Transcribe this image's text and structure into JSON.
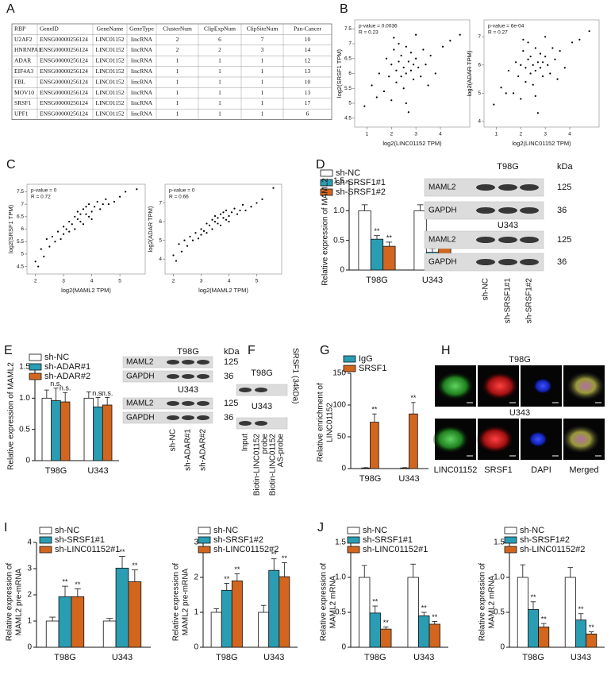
{
  "panel_labels": [
    "A",
    "B",
    "C",
    "D",
    "E",
    "F",
    "G",
    "H",
    "I",
    "J"
  ],
  "table": {
    "header": [
      "RBP",
      "GeneID",
      "GeneName",
      "GeneType",
      "ClusterNum",
      "ClipExpNum",
      "ClipSiteNum",
      "Pan-Cancer"
    ],
    "rows": [
      [
        "U2AF2",
        "ENSG00000256124",
        "LINC01152",
        "lincRNA",
        2,
        6,
        7,
        10
      ],
      [
        "HNRNPA1",
        "ENSG00000256124",
        "LINC01152",
        "lincRNA",
        2,
        2,
        3,
        14
      ],
      [
        "ADAR",
        "ENSG00000256124",
        "LINC01152",
        "lincRNA",
        1,
        1,
        1,
        12
      ],
      [
        "EIF4A3",
        "ENSG00000256124",
        "LINC01152",
        "lincRNA",
        1,
        1,
        1,
        13
      ],
      [
        "FBL",
        "ENSG00000256124",
        "LINC01152",
        "lincRNA",
        1,
        1,
        1,
        10
      ],
      [
        "MOV10",
        "ENSG00000256124",
        "LINC01152",
        "lincRNA",
        1,
        1,
        1,
        13
      ],
      [
        "SRSF1",
        "ENSG00000256124",
        "LINC01152",
        "lincRNA",
        1,
        1,
        1,
        17
      ],
      [
        "UPF1",
        "ENSG00000256124",
        "LINC01152",
        "lincRNA",
        1,
        1,
        1,
        6
      ]
    ]
  },
  "chart_data": [
    {
      "type": "scatter",
      "color": "#000000",
      "annotations": [
        "p-value = 0.0036",
        "R = 0.23"
      ],
      "xlabel": "log2(LINC01152 TPM)",
      "ylabel": "log2(SRSF1 TPM)",
      "xlim": [
        0.5,
        5.2
      ],
      "ylim": [
        4.2,
        7.8
      ],
      "xticks": [
        1,
        2,
        3,
        4
      ],
      "yticks": [
        4.5,
        5,
        5.5,
        6,
        6.5,
        7,
        7.5
      ],
      "x": [
        1.2,
        1.5,
        1.7,
        1.8,
        1.9,
        2.0,
        2.0,
        2.1,
        2.2,
        2.2,
        2.3,
        2.3,
        2.4,
        2.4,
        2.5,
        2.5,
        2.6,
        2.6,
        2.7,
        2.7,
        2.8,
        2.8,
        2.9,
        3.0,
        3.0,
        3.1,
        3.2,
        3.3,
        3.4,
        3.6,
        3.8,
        4.1,
        4.4,
        4.8,
        0.9,
        1.4,
        2.1,
        2.6,
        3.5,
        2.9
      ],
      "values": [
        5.6,
        6.0,
        5.4,
        6.5,
        5.9,
        6.3,
        5.1,
        6.8,
        6.1,
        5.7,
        6.4,
        7.0,
        5.9,
        6.6,
        6.2,
        5.5,
        6.9,
        6.0,
        6.4,
        4.7,
        6.7,
        6.1,
        5.8,
        6.5,
        7.3,
        6.2,
        5.9,
        6.8,
        6.3,
        6.6,
        6.0,
        6.9,
        7.1,
        7.3,
        4.9,
        5.2,
        7.2,
        5.0,
        5.6,
        6.3
      ]
    },
    {
      "type": "scatter",
      "color": "#000000",
      "annotations": [
        "p-value = 6e-04",
        "R = 0.27"
      ],
      "xlabel": "log2(LINC01152 TPM)",
      "ylabel": "log2(ADAR TPM)",
      "xlim": [
        0.5,
        5.2
      ],
      "ylim": [
        3.8,
        7.6
      ],
      "xticks": [
        1,
        2,
        3,
        4
      ],
      "yticks": [
        4,
        5,
        6,
        7
      ],
      "x": [
        1.2,
        1.5,
        1.7,
        1.8,
        1.9,
        2.0,
        2.0,
        2.1,
        2.2,
        2.2,
        2.3,
        2.3,
        2.4,
        2.4,
        2.5,
        2.5,
        2.6,
        2.6,
        2.7,
        2.7,
        2.8,
        2.8,
        2.9,
        3.0,
        3.0,
        3.1,
        3.2,
        3.3,
        3.4,
        3.6,
        3.8,
        4.1,
        4.4,
        4.8,
        0.9,
        1.4,
        2.1,
        2.6,
        3.5,
        2.9
      ],
      "values": [
        5.2,
        5.8,
        5.0,
        6.1,
        5.6,
        6.0,
        4.8,
        6.5,
        5.9,
        5.4,
        6.2,
        6.8,
        5.7,
        6.3,
        6.0,
        5.3,
        6.6,
        5.8,
        6.1,
        4.3,
        6.4,
        5.9,
        5.6,
        6.3,
        7.0,
        6.0,
        5.7,
        6.6,
        6.2,
        6.5,
        5.9,
        6.8,
        6.9,
        7.2,
        4.6,
        5.0,
        6.9,
        4.9,
        5.5,
        6.1
      ]
    },
    {
      "type": "scatter",
      "color": "#000000",
      "annotations": [
        "p-value = 0",
        "R = 0.72"
      ],
      "xlabel": "log2(MAML2 TPM)",
      "ylabel": "log2(SRSF1 TPM)",
      "xlim": [
        1.7,
        5.9
      ],
      "ylim": [
        4.2,
        7.8
      ],
      "xticks": [
        2,
        3,
        4,
        5
      ],
      "yticks": [
        4.5,
        5,
        5.5,
        6,
        6.5,
        7,
        7.5
      ],
      "x": [
        2.0,
        2.1,
        2.2,
        2.3,
        2.4,
        2.5,
        2.6,
        2.7,
        2.8,
        2.9,
        3.0,
        3.0,
        3.1,
        3.2,
        3.2,
        3.3,
        3.4,
        3.4,
        3.5,
        3.5,
        3.6,
        3.6,
        3.7,
        3.7,
        3.8,
        3.8,
        3.9,
        3.9,
        4.0,
        4.0,
        4.1,
        4.2,
        4.3,
        4.4,
        4.5,
        4.6,
        4.8,
        5.0,
        5.2,
        5.6
      ],
      "values": [
        4.7,
        4.5,
        5.2,
        4.9,
        5.6,
        5.3,
        5.7,
        5.5,
        5.9,
        5.6,
        6.1,
        5.8,
        6.0,
        6.3,
        5.9,
        6.2,
        6.5,
        6.0,
        6.4,
        6.7,
        6.3,
        6.6,
        6.8,
        6.2,
        6.6,
        6.9,
        6.5,
        7.0,
        6.7,
        6.4,
        6.9,
        7.1,
        6.8,
        7.0,
        7.2,
        7.0,
        7.1,
        7.3,
        7.5,
        7.6
      ]
    },
    {
      "type": "scatter",
      "color": "#000000",
      "annotations": [
        "p-value = 0",
        "R = 0.66"
      ],
      "xlabel": "log2(MAML2 TPM)",
      "ylabel": "log2(ADAR TPM)",
      "xlim": [
        1.7,
        5.9
      ],
      "ylim": [
        3.2,
        8.0
      ],
      "xticks": [
        2,
        3,
        4,
        5
      ],
      "yticks": [
        4,
        5,
        6,
        7
      ],
      "x": [
        2.0,
        2.1,
        2.2,
        2.3,
        2.4,
        2.5,
        2.6,
        2.7,
        2.8,
        2.9,
        3.0,
        3.0,
        3.1,
        3.2,
        3.2,
        3.3,
        3.4,
        3.4,
        3.5,
        3.5,
        3.6,
        3.6,
        3.7,
        3.7,
        3.8,
        3.8,
        3.9,
        3.9,
        4.0,
        4.0,
        4.1,
        4.2,
        4.3,
        4.4,
        4.5,
        4.6,
        4.8,
        5.0,
        5.2,
        5.6
      ],
      "values": [
        4.2,
        3.9,
        4.8,
        4.4,
        5.0,
        4.7,
        5.2,
        5.0,
        5.4,
        5.1,
        5.6,
        5.3,
        5.5,
        5.9,
        5.4,
        5.8,
        6.1,
        5.6,
        6.0,
        6.3,
        5.9,
        6.2,
        6.4,
        5.8,
        6.2,
        6.5,
        6.1,
        6.6,
        6.3,
        6.0,
        6.5,
        6.7,
        6.4,
        6.6,
        6.9,
        6.6,
        6.8,
        7.0,
        7.2,
        7.8
      ]
    },
    {
      "type": "bar",
      "ylabel": [
        "Relative expression of MAML2"
      ],
      "categories": [
        "T98G",
        "U343"
      ],
      "ylim": [
        0,
        1.5
      ],
      "yticks": [
        0,
        0.5,
        {
          "value": 1,
          "label": "1.0"
        },
        1.5
      ],
      "series": [
        {
          "name": "sh-NC",
          "color": "#ffffff",
          "values": [
            1.0,
            1.0
          ],
          "errors": [
            0.1,
            0.1
          ]
        },
        {
          "name": "sh-SRSF1#1",
          "color": "#2a9db3",
          "values": [
            0.52,
            0.3
          ],
          "errors": [
            0.06,
            0.06
          ],
          "sig": [
            "**",
            "**"
          ]
        },
        {
          "name": "sh-SRSF1#2",
          "color": "#d2661f",
          "values": [
            0.4,
            0.41
          ],
          "errors": [
            0.07,
            0.05
          ],
          "sig": [
            "**",
            "**"
          ]
        }
      ]
    },
    {
      "type": "bar",
      "ylabel": [
        "Relative expression of MAML2"
      ],
      "categories": [
        "T98G",
        "U343"
      ],
      "ylim": [
        0,
        1.5
      ],
      "yticks": [
        0,
        0.5,
        {
          "value": 1,
          "label": "1.0"
        },
        1.5
      ],
      "series": [
        {
          "name": "sh-NC",
          "color": "#ffffff",
          "values": [
            1.0,
            1.0
          ],
          "errors": [
            0.13,
            0.1
          ]
        },
        {
          "name": "sh-ADAR#1",
          "color": "#2a9db3",
          "values": [
            0.96,
            0.86
          ],
          "errors": [
            0.2,
            0.15
          ],
          "sig": [
            "n.s.",
            "n.s."
          ]
        },
        {
          "name": "sh-ADAR#2",
          "color": "#d2661f",
          "values": [
            0.94,
            0.89
          ],
          "errors": [
            0.15,
            0.12
          ],
          "sig": [
            "n.s.",
            "n.s."
          ]
        }
      ]
    },
    {
      "type": "bar",
      "ylabel": [
        "Relative enrichment of",
        "LINC01152"
      ],
      "categories": [
        "T98G",
        "U343"
      ],
      "ylim": [
        0,
        150
      ],
      "yticks": [
        0,
        50,
        100,
        150
      ],
      "series": [
        {
          "name": "IgG",
          "color": "#2a9db3",
          "values": [
            1,
            1
          ],
          "errors": [
            0.5,
            0.5
          ]
        },
        {
          "name": "SRSF1",
          "color": "#d2661f",
          "values": [
            73,
            86
          ],
          "errors": [
            13,
            18
          ],
          "sig": [
            "**",
            "**"
          ]
        }
      ]
    },
    {
      "type": "bar",
      "ylabel": [
        "Relative expression of",
        "MAML2 pre-mRNA"
      ],
      "categories": [
        "T98G",
        "U343"
      ],
      "ylim": [
        0,
        4
      ],
      "yticks": [
        0,
        1,
        2,
        3,
        4
      ],
      "series": [
        {
          "name": "sh-NC",
          "color": "#ffffff",
          "values": [
            1,
            1
          ],
          "errors": [
            0.15,
            0.1
          ]
        },
        {
          "name": "sh-SRSF1#1",
          "color": "#2a9db3",
          "values": [
            1.93,
            3.02
          ],
          "errors": [
            0.4,
            0.45
          ],
          "sig": [
            "**",
            "**"
          ]
        },
        {
          "name": "sh-LINC01152#1",
          "color": "#d2661f",
          "values": [
            1.93,
            2.5
          ],
          "errors": [
            0.3,
            0.45
          ],
          "sig": [
            "**",
            "**"
          ]
        }
      ]
    },
    {
      "type": "bar",
      "ylabel": [
        "Relative expression of",
        "MAML2 pre-mRNA"
      ],
      "categories": [
        "T98G",
        "U343"
      ],
      "ylim": [
        0,
        3
      ],
      "yticks": [
        0,
        1,
        2,
        3
      ],
      "series": [
        {
          "name": "sh-NC",
          "color": "#ffffff",
          "values": [
            1,
            1
          ],
          "errors": [
            0.1,
            0.2
          ]
        },
        {
          "name": "sh-SRSF1#2",
          "color": "#2a9db3",
          "values": [
            1.63,
            2.2
          ],
          "errors": [
            0.2,
            0.33
          ],
          "sig": [
            "**",
            "**"
          ]
        },
        {
          "name": "sh-LINC01152#2",
          "color": "#d2661f",
          "values": [
            1.9,
            2.02
          ],
          "errors": [
            0.2,
            0.4
          ],
          "sig": [
            "**",
            "**"
          ]
        }
      ]
    },
    {
      "type": "bar",
      "ylabel": [
        "Relative expression of",
        "MAML2 mRNA"
      ],
      "categories": [
        "T98G",
        "U343"
      ],
      "ylim": [
        0,
        1.5
      ],
      "yticks": [
        0,
        0.5,
        {
          "value": 1,
          "label": "1.0"
        },
        1.5
      ],
      "series": [
        {
          "name": "sh-NC",
          "color": "#ffffff",
          "values": [
            1.0,
            1.0
          ],
          "errors": [
            0.17,
            0.19
          ]
        },
        {
          "name": "sh-SRSF1#1",
          "color": "#2a9db3",
          "values": [
            0.49,
            0.45
          ],
          "errors": [
            0.1,
            0.05
          ],
          "sig": [
            "**",
            "**"
          ]
        },
        {
          "name": "sh-LINC01152#1",
          "color": "#d2661f",
          "values": [
            0.26,
            0.33
          ],
          "errors": [
            0.03,
            0.04
          ],
          "sig": [
            "**",
            "**"
          ]
        }
      ]
    },
    {
      "type": "bar",
      "ylabel": [
        "Relative expression of",
        "MAML2 mRNA"
      ],
      "categories": [
        "T98G",
        "U343"
      ],
      "ylim": [
        0,
        1.5
      ],
      "yticks": [
        0,
        0.5,
        {
          "value": 1,
          "label": "1.0"
        },
        1.5
      ],
      "series": [
        {
          "name": "sh-NC",
          "color": "#ffffff",
          "values": [
            1.0,
            1.0
          ],
          "errors": [
            0.18,
            0.14
          ]
        },
        {
          "name": "sh-SRSF1#2",
          "color": "#2a9db3",
          "values": [
            0.54,
            0.39
          ],
          "errors": [
            0.11,
            0.09
          ],
          "sig": [
            "**",
            "**"
          ]
        },
        {
          "name": "sh-LINC01152#2",
          "color": "#d2661f",
          "values": [
            0.29,
            0.19
          ],
          "errors": [
            0.05,
            0.03
          ],
          "sig": [
            "**",
            "**"
          ]
        }
      ]
    }
  ],
  "blots": [
    {
      "kda_label": "kDa",
      "cells": [
        {
          "name": "T98G",
          "rows": [
            {
              "label": "MAML2",
              "kda": 125
            },
            {
              "label": "GAPDH",
              "kda": 36
            }
          ]
        },
        {
          "name": "U343",
          "rows": [
            {
              "label": "MAML2",
              "kda": 125
            },
            {
              "label": "GAPDH",
              "kda": 36
            }
          ]
        }
      ],
      "lanes": [
        [
          "sh-NC"
        ],
        [
          "sh-SRSF1#1"
        ],
        [
          "sh-SRSF1#2"
        ]
      ]
    },
    {
      "kda_label": "kDa",
      "cells": [
        {
          "name": "T98G",
          "rows": [
            {
              "label": "MAML2",
              "kda": 125
            },
            {
              "label": "GAPDH",
              "kda": 36
            }
          ]
        },
        {
          "name": "U343",
          "rows": [
            {
              "label": "MAML2",
              "kda": 125
            },
            {
              "label": "GAPDH",
              "kda": 36
            }
          ]
        }
      ],
      "lanes": [
        [
          "sh-NC"
        ],
        [
          "sh-ADAR#1"
        ],
        [
          "sh-ADAR#2"
        ]
      ]
    },
    {
      "side_label": "SRSF1 (34kDa)",
      "cells": [
        {
          "name": "T98G"
        },
        {
          "name": "U343"
        }
      ],
      "lanes": [
        [
          "Input"
        ],
        [
          "Biotin-LINC01152",
          "probe"
        ],
        [
          "Biotin-LINC01152",
          "AS-probe"
        ]
      ]
    }
  ],
  "microscopy": {
    "cells": [
      "T98G",
      "U343"
    ],
    "channels": [
      "LINC01152",
      "SRSF1",
      "DAPI",
      "Merged"
    ]
  }
}
